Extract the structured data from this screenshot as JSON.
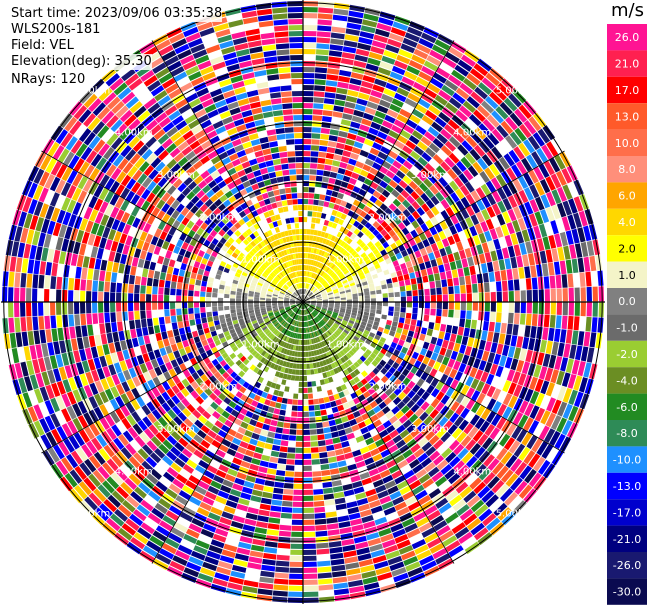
{
  "header": {
    "start_time": "Start time: 2023/09/06 03:35:38",
    "site": "WLS200s-181",
    "field": "Field: VEL",
    "elevation": "Elevation(deg): 35.30",
    "nrays": "NRays: 120"
  },
  "chart_data": {
    "type": "heatmap",
    "projection": "polar (PPI)",
    "field": "VEL",
    "units": "m/s",
    "rays": 120,
    "range_rings_km": [
      1.0,
      2.0,
      3.0,
      4.0,
      5.0
    ],
    "ring_labels": [
      "1.00km",
      "2.00km",
      "3.00km",
      "4.00km",
      "5.00km"
    ],
    "colorbar": {
      "unit": "m/s",
      "ticks": [
        "26.0",
        "21.0",
        "17.0",
        "13.0",
        "10.0",
        "8.0",
        "6.0",
        "4.0",
        "2.0",
        "1.0",
        "0.0",
        "-1.0",
        "-2.0",
        "-4.0",
        "-6.0",
        "-8.0",
        "-10.0",
        "-13.0",
        "-17.0",
        "-21.0",
        "-26.0",
        "-30.0"
      ],
      "colors": [
        "#ff1493",
        "#ff2050",
        "#ff0000",
        "#ff5a2a",
        "#ff6e4a",
        "#ff8f7a",
        "#ffa500",
        "#ffd700",
        "#ffff00",
        "#f4f4c8",
        "#808080",
        "#6b6b6b",
        "#9acd32",
        "#6b8e23",
        "#228b22",
        "#2e8b57",
        "#1e90ff",
        "#0000ff",
        "#0000cd",
        "#000080",
        "#191970",
        "#0a0a50"
      ]
    },
    "velocity_pattern": {
      "near_field": "positive (yellow/orange) toward north, negative (green) toward south, gray near zero east-west",
      "far_field": "noise beyond approximately 2.2 km"
    }
  }
}
